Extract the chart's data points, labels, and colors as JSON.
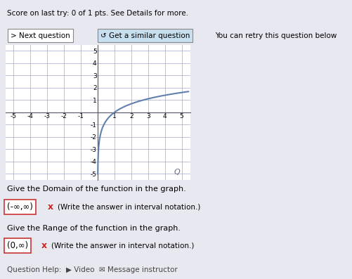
{
  "xlim": [
    -5.5,
    5.5
  ],
  "ylim": [
    -5.5,
    5.5
  ],
  "xticks": [
    -5,
    -4,
    -3,
    -2,
    -1,
    1,
    2,
    3,
    4,
    5
  ],
  "yticks": [
    -5,
    -4,
    -3,
    -2,
    -1,
    1,
    2,
    3,
    4,
    5
  ],
  "curve_color": "#6080b0",
  "curve_linewidth": 1.5,
  "grid_color": "#a0a8cc",
  "axis_color": "#555566",
  "bg_color": "#e8e8f0",
  "graph_bg": "#ffffff",
  "banner_text": "Score on last try: 0 of 1 pts. See Details for more.",
  "btn1_text": "> Next question",
  "btn2_text": "↺ Get a similar question",
  "btn3_text": "You can retry this question below",
  "domain_label": "Give the Domain of the function in the graph.",
  "domain_answer": "(-∞,∞)",
  "range_label": "Give the Range of the function in the graph.",
  "range_answer": "(0,∞)",
  "note_text": "(Write the answer in interval notation.)",
  "footer_text": "Question Help:  ▶ Video  ✉ Message instructor"
}
